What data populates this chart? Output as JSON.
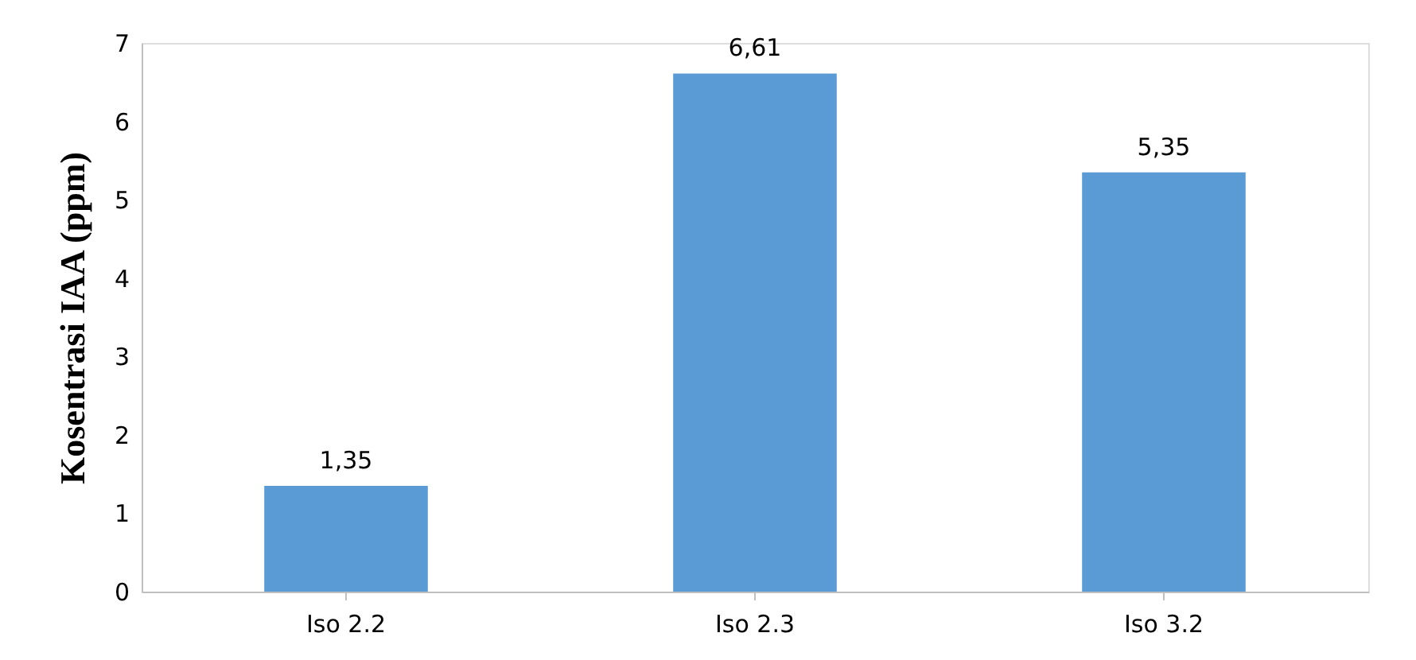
{
  "chart_data": {
    "type": "bar",
    "ylabel": "Kosentrasi IAA (ppm)",
    "categories": [
      "Iso 2.2",
      "Iso 2.3",
      "Iso 3.2"
    ],
    "values": [
      1.35,
      6.61,
      5.35
    ],
    "value_labels": [
      "1,35",
      "6,61",
      "5,35"
    ],
    "color": "#5b9bd5",
    "ylim": [
      0,
      7
    ],
    "yticks": [
      0,
      1,
      2,
      3,
      4,
      5,
      6,
      7
    ],
    "grid": false
  }
}
